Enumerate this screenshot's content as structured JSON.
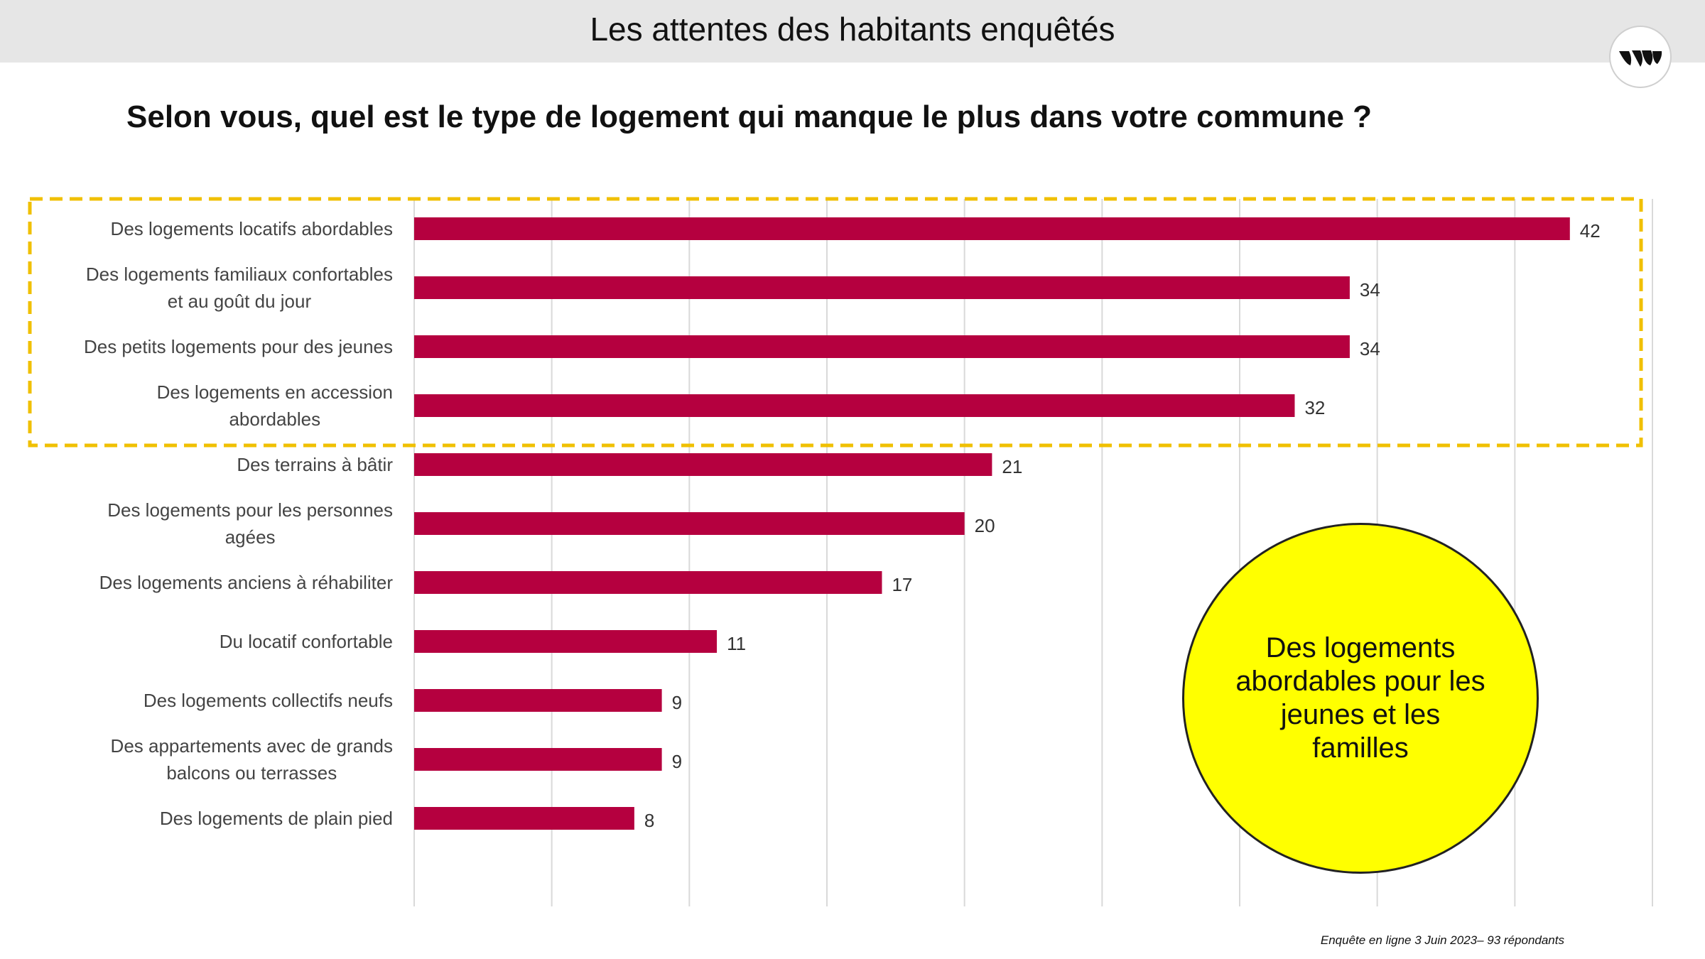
{
  "header": {
    "title": "Les attentes des habitants enquêtés",
    "logo_icon": "leaves-logo-icon"
  },
  "question": "Selon vous, quel est le type de logement qui manque le plus dans votre commune ?",
  "chart_data": {
    "type": "bar",
    "orientation": "horizontal",
    "categories": [
      [
        "Des logements locatifs abordables"
      ],
      [
        "Des logements familiaux confortables",
        "et au goût du jour"
      ],
      [
        "Des petits logements pour des jeunes"
      ],
      [
        "Des logements en accession",
        "abordables"
      ],
      [
        "Des terrains à bâtir"
      ],
      [
        "Des logements pour les personnes",
        "agées"
      ],
      [
        "Des logements anciens à réhabiliter"
      ],
      [
        "Du locatif confortable"
      ],
      [
        "Des logements collectifs neufs"
      ],
      [
        "Des appartements avec de grands",
        "balcons ou terrasses"
      ],
      [
        "Des logements de plain pied"
      ]
    ],
    "values": [
      42,
      34,
      34,
      32,
      21,
      20,
      17,
      11,
      9,
      9,
      8
    ],
    "value_labels": [
      "42",
      "34",
      "34",
      "32",
      "21",
      "20",
      "17",
      "11",
      "9",
      "9",
      "8"
    ],
    "xlim": [
      0,
      45
    ],
    "x_gridline_step": 5,
    "grid": true,
    "legend": "none",
    "bar_color": "#b5003f",
    "highlight": {
      "first_n_categories": 4,
      "style": "dashed-box",
      "color": "#f0c000"
    }
  },
  "callout": {
    "text": "Des logements abordables pour les jeunes et les familles",
    "color": "#ffff00"
  },
  "source_note": "Enquête en ligne 3 Juin 2023– 93 répondants"
}
